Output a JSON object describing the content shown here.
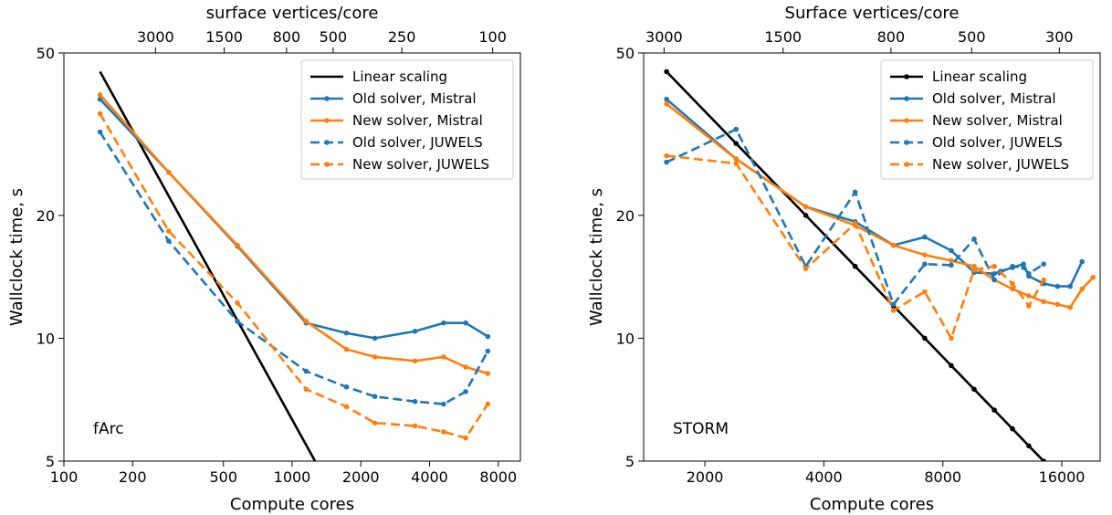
{
  "colors": {
    "linear": "#000000",
    "mistral_old": "#1f77b4",
    "mistral_new": "#ff7f0e",
    "juwels_old": "#1f77b4",
    "juwels_new": "#ff7f0e"
  },
  "chart_data": [
    {
      "type": "line",
      "xscale": "log",
      "yscale": "log",
      "xlabel": "Compute cores",
      "ylabel": "Wallclock time, s",
      "top_xlabel": "surface vertices/core",
      "annotation": "fArc",
      "xlim": [
        100,
        10000
      ],
      "ylim": [
        5,
        50
      ],
      "xticks": [
        100,
        200,
        500,
        1000,
        2000,
        4000,
        8000
      ],
      "xtick_labels": [
        "100",
        "200",
        "500",
        "1000",
        "2000",
        "4000",
        "8000"
      ],
      "yticks": [
        5,
        10,
        20,
        50
      ],
      "ytick_labels": [
        "5",
        "10",
        "20",
        "50"
      ],
      "top_ticks_cores": [
        252,
        504,
        945,
        1512,
        3024,
        7560
      ],
      "top_tick_labels": [
        "3000",
        "1500",
        "800",
        "500",
        "250",
        "100"
      ],
      "legend_position": "top-right",
      "grid": false,
      "series": [
        {
          "name": "Linear scaling",
          "style": "solid",
          "color": "#000000",
          "markers": false,
          "x": [
            144,
            1260
          ],
          "y": [
            45,
            5
          ]
        },
        {
          "name": "Old solver, Mistral",
          "style": "solid",
          "color": "#1f77b4",
          "markers": true,
          "x": [
            144,
            288,
            576,
            1152,
            1728,
            2304,
            3456,
            4608,
            5760,
            7200
          ],
          "y": [
            38.5,
            25.5,
            16.8,
            10.9,
            10.3,
            10.0,
            10.4,
            10.9,
            10.9,
            10.1
          ]
        },
        {
          "name": "New solver, Mistral",
          "style": "solid",
          "color": "#ff7f0e",
          "markers": true,
          "x": [
            144,
            288,
            576,
            1152,
            1728,
            2304,
            3456,
            4608,
            5760,
            7200
          ],
          "y": [
            39.5,
            25.5,
            16.9,
            11.0,
            9.4,
            9.0,
            8.8,
            9.0,
            8.5,
            8.2
          ]
        },
        {
          "name": "Old solver, JUWELS",
          "style": "dashed",
          "color": "#1f77b4",
          "markers": true,
          "x": [
            144,
            288,
            576,
            1152,
            1728,
            2304,
            3456,
            4608,
            5760,
            7200
          ],
          "y": [
            32.0,
            17.3,
            11.0,
            8.3,
            7.6,
            7.2,
            7.0,
            6.9,
            7.4,
            9.3
          ]
        },
        {
          "name": "New solver, JUWELS",
          "style": "dashed",
          "color": "#ff7f0e",
          "markers": true,
          "x": [
            144,
            288,
            576,
            1152,
            1728,
            2304,
            3456,
            4608,
            5760,
            7200
          ],
          "y": [
            35.5,
            18.3,
            12.2,
            7.5,
            6.8,
            6.2,
            6.1,
            5.9,
            5.7,
            6.9
          ]
        }
      ]
    },
    {
      "type": "line",
      "xscale": "log",
      "yscale": "log",
      "xlabel": "Compute cores",
      "ylabel": "Wallclock time, s",
      "top_xlabel": "Surface vertices/core",
      "annotation": "STORM",
      "xlim": [
        1400,
        20000
      ],
      "ylim": [
        5,
        50
      ],
      "xticks": [
        2000,
        4000,
        8000,
        16000
      ],
      "xtick_labels": [
        "2000",
        "4000",
        "8000",
        "16000"
      ],
      "yticks": [
        5,
        10,
        20,
        50
      ],
      "ytick_labels": [
        "5",
        "10",
        "20",
        "50"
      ],
      "top_ticks_cores": [
        1577,
        3154,
        5914,
        9462,
        15771
      ],
      "top_tick_labels": [
        "3000",
        "1500",
        "800",
        "500",
        "300"
      ],
      "legend_position": "top-right",
      "grid": false,
      "series": [
        {
          "name": "Linear scaling",
          "style": "solid",
          "color": "#000000",
          "markers": true,
          "x": [
            1600,
            2400,
            3600,
            4800,
            6000,
            7200,
            8400,
            9600,
            10800,
            12000,
            13200,
            14400,
            15600
          ],
          "y": [
            45.0,
            30.0,
            20.0,
            15.0,
            12.0,
            10.0,
            8.57,
            7.5,
            6.67,
            6.0,
            5.45,
            5.0,
            4.62
          ]
        },
        {
          "name": "Old solver, Mistral",
          "style": "solid",
          "color": "#1f77b4",
          "markers": true,
          "x": [
            1600,
            2400,
            3600,
            4800,
            6000,
            7200,
            8400,
            9600,
            10800,
            11200,
            12000,
            12800,
            13200,
            14400,
            15600,
            16800,
            18000
          ],
          "y": [
            38.5,
            27.5,
            21.0,
            19.3,
            16.9,
            17.7,
            16.4,
            14.5,
            14.4,
            14.6,
            14.9,
            15.2,
            14.2,
            13.6,
            13.4,
            13.4,
            15.4
          ]
        },
        {
          "name": "New solver, Mistral",
          "style": "solid",
          "color": "#ff7f0e",
          "markers": true,
          "x": [
            1600,
            2400,
            3600,
            4800,
            6000,
            7200,
            8400,
            9600,
            10800,
            12000,
            13200,
            14400,
            15600,
            16800,
            18000,
            19200
          ],
          "y": [
            37.5,
            27.5,
            21.0,
            18.9,
            16.9,
            16.0,
            15.5,
            15.0,
            13.9,
            13.2,
            12.7,
            12.3,
            12.1,
            11.9,
            13.2,
            14.1
          ]
        },
        {
          "name": "Old solver, JUWELS",
          "style": "dashed",
          "color": "#1f77b4",
          "markers": true,
          "x": [
            1600,
            2400,
            3600,
            4800,
            6000,
            7200,
            8400,
            9600,
            10800,
            11200,
            12000,
            12800,
            13200,
            14400
          ],
          "y": [
            27.0,
            32.5,
            15.0,
            22.8,
            12.1,
            15.2,
            15.1,
            17.5,
            13.9,
            14.5,
            15.0,
            14.9,
            14.4,
            15.2
          ]
        },
        {
          "name": "New solver, JUWELS",
          "style": "dashed",
          "color": "#ff7f0e",
          "markers": true,
          "x": [
            1600,
            2400,
            3600,
            4800,
            6000,
            7200,
            8400,
            9600,
            10800,
            12000,
            13200,
            14400
          ],
          "y": [
            28.0,
            26.8,
            14.8,
            19.1,
            11.7,
            13.0,
            10.0,
            14.7,
            15.0,
            13.6,
            12.0,
            13.9
          ]
        }
      ]
    }
  ]
}
